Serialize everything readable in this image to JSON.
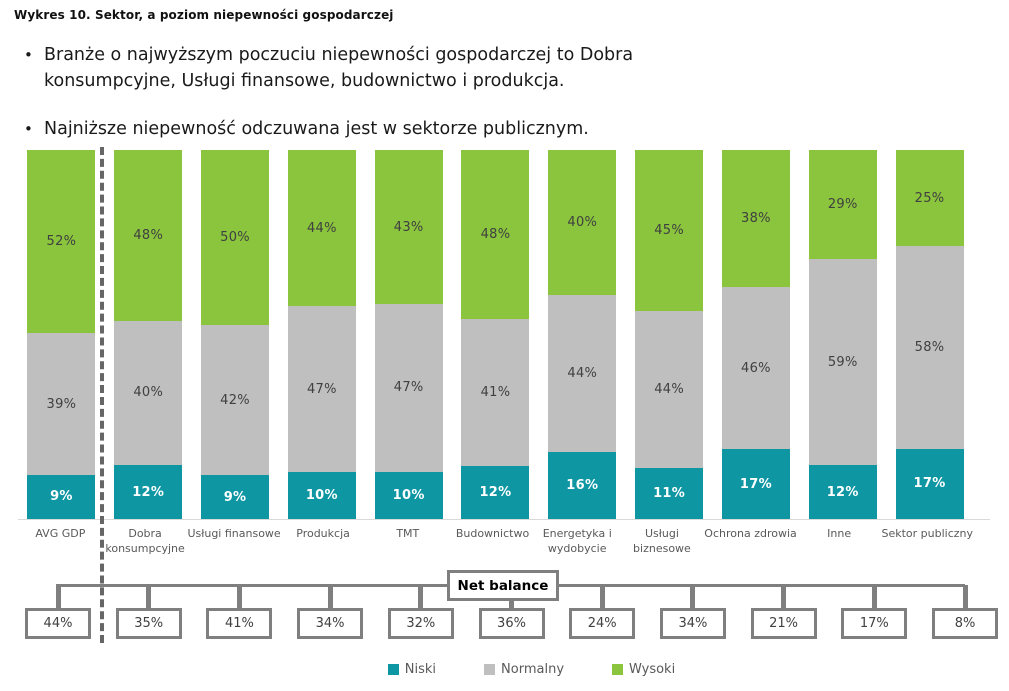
{
  "page": {
    "title": "Wykres 10. Sektor, a poziom niepewności gospodarczej",
    "bullets": [
      "Branże o najwyższym poczuciu niepewności gospodarczej to Dobra\nkonsumpcyjne, Usługi finansowe, budownictwo i produkcja.",
      "Najniższe niepewność odczuwana jest w sektorze publicznym."
    ]
  },
  "net_balance_label": "Net balance",
  "legend": [
    {
      "label": "Niski",
      "color": "#0E96A3"
    },
    {
      "label": "Normalny",
      "color": "#BFBFBF"
    },
    {
      "label": "Wysoki",
      "color": "#8AC53D"
    }
  ],
  "chart_data": {
    "type": "bar",
    "stacked": true,
    "orientation": "vertical",
    "unit": "%",
    "title": "Wykres 10. Sektor, a poziom niepewności gospodarczej",
    "ylim": [
      0,
      100
    ],
    "grid": false,
    "legend_position": "bottom",
    "categories": [
      "AVG GDP",
      "Dobra\nkonsumpcyjne",
      "Usługi finansowe",
      "Produkcja",
      "TMT",
      "Budownictwo",
      "Energetyka i\nwydobycie",
      "Usługi\nbiznesowe",
      "Ochrona zdrowia",
      "Inne",
      "Sektor publiczny"
    ],
    "series": [
      {
        "name": "Niski",
        "color": "#0E96A3",
        "values": [
          9,
          12,
          9,
          10,
          10,
          12,
          16,
          11,
          17,
          12,
          17
        ]
      },
      {
        "name": "Normalny",
        "color": "#BFBFBF",
        "values": [
          39,
          40,
          42,
          47,
          47,
          41,
          44,
          44,
          46,
          59,
          58
        ]
      },
      {
        "name": "Wysoki",
        "color": "#8AC53D",
        "values": [
          52,
          48,
          50,
          44,
          43,
          48,
          40,
          45,
          38,
          29,
          25
        ]
      }
    ],
    "net_balance": [
      44,
      35,
      41,
      34,
      32,
      36,
      24,
      34,
      21,
      17,
      8
    ],
    "separator_after_category": "AVG GDP"
  }
}
